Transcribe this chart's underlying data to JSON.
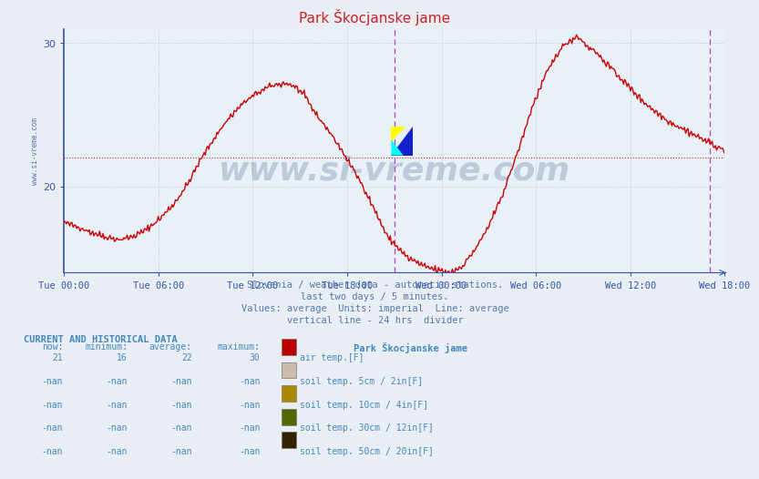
{
  "title": "Park Škocjanske jame",
  "bg_color": "#e8eef4",
  "plot_bg_color": "#e8f0f8",
  "line_color": "#cc0000",
  "line_width": 1.0,
  "ylim": [
    14,
    31
  ],
  "ytick_vals": [
    20,
    30
  ],
  "avg_line_y": 22,
  "avg_line_color": "#dd2222",
  "vline_color": "#bb44bb",
  "grid_color": "#b0c4d8",
  "axis_color": "#3355aa",
  "n_points": 576,
  "vline1_idx": 288,
  "vline2_idx": 562,
  "xtick_labels": [
    "Tue 00:00",
    "Tue 06:00",
    "Tue 12:00",
    "Tue 18:00",
    "Wed 00:00",
    "Wed 06:00",
    "Wed 12:00",
    "Wed 18:00"
  ],
  "subtitle_lines": [
    "Slovenia / weather data - automatic stations.",
    "last two days / 5 minutes.",
    "Values: average  Units: imperial  Line: average",
    "vertical line - 24 hrs  divider"
  ],
  "subtitle_color": "#5577aa",
  "watermark": "www.si-vreme.com",
  "watermark_color": "#1a3060",
  "watermark_alpha": 0.2,
  "sidebar_text": "www.si-vreme.com",
  "sidebar_color": "#5577aa",
  "legend_station": "Park Škocjanske jame",
  "legend_items": [
    {
      "label": "air temp.[F]",
      "color": "#bb0000"
    },
    {
      "label": "soil temp. 5cm / 2in[F]",
      "color": "#ccbbaa"
    },
    {
      "label": "soil temp. 10cm / 4in[F]",
      "color": "#aa8800"
    },
    {
      "label": "soil temp. 30cm / 12in[F]",
      "color": "#556600"
    },
    {
      "label": "soil temp. 50cm / 20in[F]",
      "color": "#332200"
    }
  ],
  "table_headers": [
    "now:",
    "minimum:",
    "average:",
    "maximum:"
  ],
  "table_rows": [
    [
      "21",
      "16",
      "22",
      "30"
    ],
    [
      "-nan",
      "-nan",
      "-nan",
      "-nan"
    ],
    [
      "-nan",
      "-nan",
      "-nan",
      "-nan"
    ],
    [
      "-nan",
      "-nan",
      "-nan",
      "-nan"
    ],
    [
      "-nan",
      "-nan",
      "-nan",
      "-nan"
    ]
  ]
}
